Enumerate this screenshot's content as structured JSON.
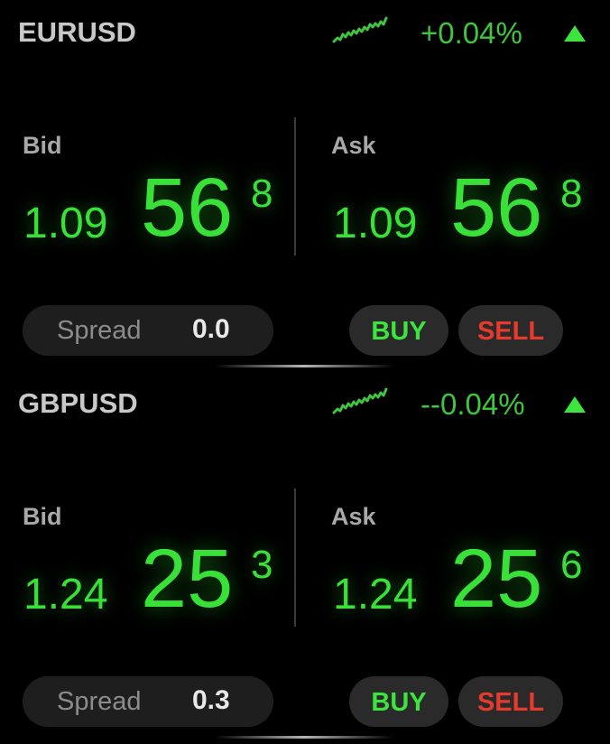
{
  "instruments": [
    {
      "symbol": "EURUSD",
      "change": "+0.04%",
      "trend": "up",
      "bid": {
        "label": "Bid",
        "base": "1.09",
        "pips": "56",
        "pipette": "8"
      },
      "ask": {
        "label": "Ask",
        "base": "1.09",
        "pips": "56",
        "pipette": "8"
      },
      "spread": {
        "label": "Spread",
        "value": "0.0"
      },
      "buy_label": "BUY",
      "sell_label": "SELL"
    },
    {
      "symbol": "GBPUSD",
      "change": "--0.04%",
      "trend": "up",
      "bid": {
        "label": "Bid",
        "base": "1.24",
        "pips": "25",
        "pipette": "3"
      },
      "ask": {
        "label": "Ask",
        "base": "1.24",
        "pips": "25",
        "pipette": "6"
      },
      "spread": {
        "label": "Spread",
        "value": "0.3"
      },
      "buy_label": "BUY",
      "sell_label": "SELL"
    }
  ],
  "icons": {
    "sparkline": "sparkline-icon",
    "trend_arrow": "arrow-up-icon"
  },
  "colors": {
    "price_green": "#38e038",
    "change_green": "#3fc53f",
    "buy_green": "#3ee43e",
    "sell_red": "#e63a2c",
    "label_gray": "#a8a8a8",
    "background": "#000000"
  }
}
